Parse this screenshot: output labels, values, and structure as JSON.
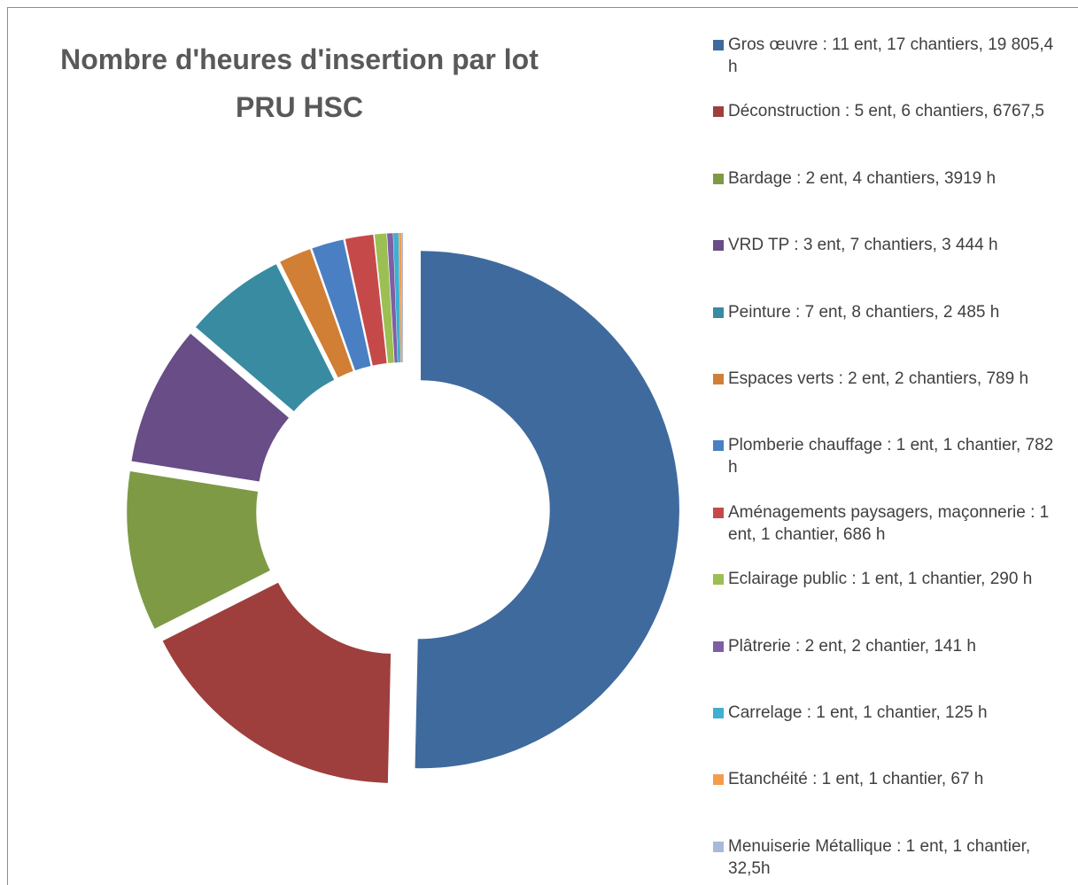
{
  "chart_data": {
    "type": "donut",
    "title": [
      "Nombre d'heures d'insertion par lot",
      "PRU HSC"
    ],
    "categories": [
      "Gros œuvre : 11 ent, 17 chantiers, 19 805,4 h",
      "Déconstruction : 5 ent, 6 chantiers, 6767,5",
      "Bardage : 2 ent, 4 chantiers, 3919 h",
      "VRD TP : 3 ent, 7 chantiers, 3 444 h",
      "Peinture : 7 ent, 8 chantiers, 2 485 h",
      "Espaces verts : 2 ent, 2 chantiers, 789 h",
      "Plomberie chauffage : 1 ent, 1 chantier, 782 h",
      "Aménagements paysagers, maçonnerie : 1 ent, 1 chantier, 686 h",
      "Eclairage public : 1 ent, 1 chantier, 290 h",
      "Plâtrerie : 2 ent, 2 chantier, 141 h",
      "Carrelage : 1 ent, 1 chantier, 125 h",
      "Etanchéité : 1 ent, 1 chantier, 67 h",
      "Menuiserie Métallique : 1 ent, 1 chantier, 32,5h"
    ],
    "values": [
      19805.4,
      6767.5,
      3919,
      3444,
      2485,
      789,
      782,
      686,
      290,
      141,
      125,
      67,
      32.5
    ],
    "colors": [
      "#3f6a9e",
      "#9e3f3d",
      "#7e9a45",
      "#684d86",
      "#388ba0",
      "#d07f34",
      "#4a7fc3",
      "#c6494a",
      "#9bbf53",
      "#7e5fa3",
      "#3fb0cf",
      "#f59c4c",
      "#a9b9d9"
    ],
    "legend": "right"
  }
}
